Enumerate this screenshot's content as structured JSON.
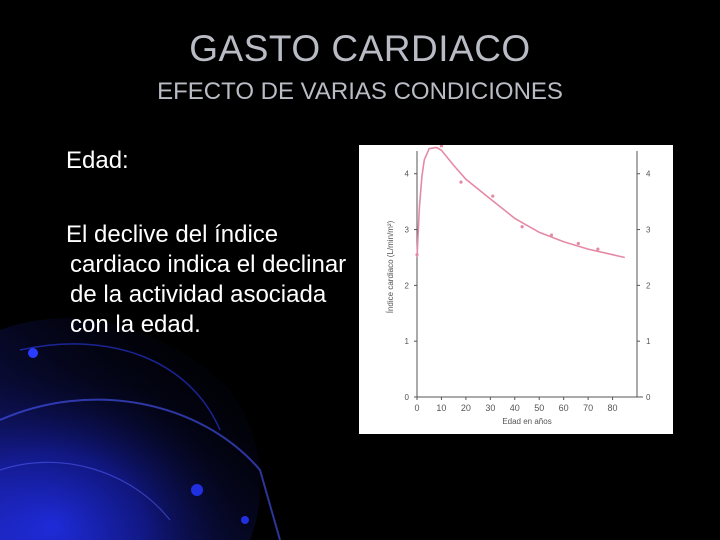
{
  "slide": {
    "title": "GASTO CARDIACO",
    "subtitle": "EFECTO DE VARIAS CONDICIONES",
    "heading": "Edad:",
    "paragraph": "El declive del índice cardiaco indica el declinar de la actividad asociada con la edad."
  },
  "theme": {
    "background": "#000000",
    "title_color": "#b9bcc4",
    "text_color": "#ffffff",
    "curve_color": "#e58aa5",
    "axis_color": "#555555"
  },
  "chart_data": {
    "type": "line",
    "xlabel": "Edad en años",
    "ylabel": "Índice cardiaco (L/min/m²)",
    "xlim": [
      0,
      90
    ],
    "ylim": [
      0,
      4.3
    ],
    "x_ticks": [
      "0",
      "10",
      "20",
      "30",
      "40",
      "50",
      "60",
      "70",
      "80"
    ],
    "y_ticks_left": [
      "0",
      "1",
      "2",
      "3",
      "4"
    ],
    "y_ticks_right": [
      "0",
      "1",
      "2",
      "3",
      "4"
    ],
    "curve": {
      "x": [
        0,
        1,
        2,
        3,
        5,
        8,
        10,
        15,
        20,
        30,
        40,
        50,
        60,
        70,
        80,
        85
      ],
      "y": [
        2.5,
        3.4,
        3.95,
        4.25,
        4.45,
        4.47,
        4.42,
        4.15,
        3.9,
        3.55,
        3.2,
        2.95,
        2.78,
        2.65,
        2.55,
        2.5
      ]
    },
    "points": {
      "x": [
        0,
        10,
        18,
        31,
        43,
        55,
        66,
        74
      ],
      "y": [
        2.55,
        4.5,
        3.85,
        3.6,
        3.05,
        2.9,
        2.75,
        2.65
      ]
    }
  }
}
